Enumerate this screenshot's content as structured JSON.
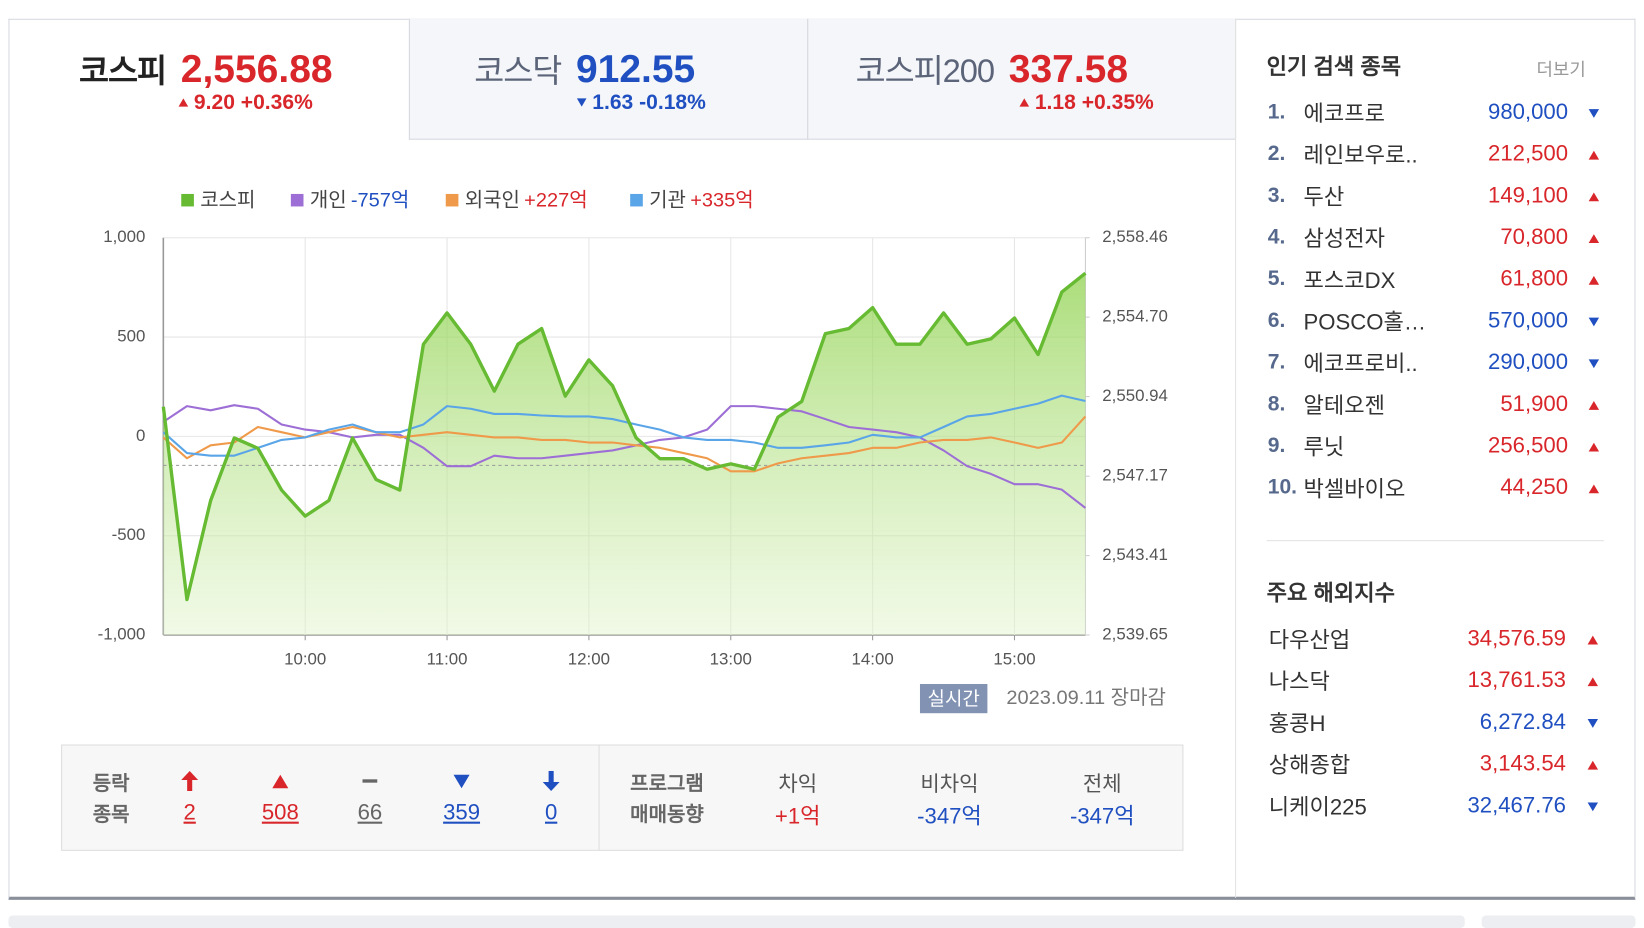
{
  "tabs": [
    {
      "name": "코스피",
      "value": "2,556.88",
      "change": "9.20 +0.36%",
      "direction": "up",
      "active": true
    },
    {
      "name": "코스닥",
      "value": "912.55",
      "change": "1.63 -0.18%",
      "direction": "down",
      "active": false
    },
    {
      "name": "코스피200",
      "value": "337.58",
      "change": "1.18 +0.35%",
      "direction": "up",
      "active": false
    }
  ],
  "chart_data": {
    "type": "line",
    "x": [
      "09:00",
      "09:10",
      "09:20",
      "09:30",
      "09:40",
      "09:50",
      "10:00",
      "10:10",
      "10:20",
      "10:30",
      "10:40",
      "10:50",
      "11:00",
      "11:10",
      "11:20",
      "11:30",
      "11:40",
      "11:50",
      "12:00",
      "12:10",
      "12:20",
      "12:30",
      "12:40",
      "12:50",
      "13:00",
      "13:10",
      "13:20",
      "13:30",
      "13:40",
      "13:50",
      "14:00",
      "14:10",
      "14:20",
      "14:30",
      "14:40",
      "14:50",
      "15:00",
      "15:10",
      "15:20",
      "15:30"
    ],
    "xlim": [
      "09:00",
      "15:30"
    ],
    "xticks": [
      "10:00",
      "11:00",
      "12:00",
      "13:00",
      "14:00",
      "15:00"
    ],
    "ylim": [
      -1000,
      1000
    ],
    "yticks": [
      {
        "value": 1000,
        "label": "1,000"
      },
      500,
      0,
      -500,
      {
        "value": -1000,
        "label": "-1,000"
      }
    ],
    "y2lim": [
      2539.65,
      2558.46
    ],
    "y2ticks": [
      {
        "value": 2558.46,
        "label": "2,558.46"
      },
      {
        "value": 2554.7,
        "label": "2,554.70"
      },
      {
        "value": 2550.94,
        "label": "2,550.94"
      },
      {
        "value": 2547.17,
        "label": "2,547.17"
      },
      {
        "value": 2543.41,
        "label": "2,543.41"
      },
      {
        "value": 2539.65,
        "label": "2,539.65"
      }
    ],
    "grid": true,
    "reference_line": {
      "value": 2547.68,
      "axis": "y2"
    },
    "series": [
      {
        "name": "코스피",
        "color": "#66bb33",
        "axis": "y2",
        "area": true,
        "values": [
          2550.46,
          2541.33,
          2546.02,
          2548.98,
          2548.49,
          2546.51,
          2545.28,
          2546.02,
          2548.98,
          2547.01,
          2546.51,
          2553.42,
          2554.9,
          2553.42,
          2551.2,
          2553.42,
          2554.16,
          2550.96,
          2552.68,
          2551.45,
          2548.98,
          2548.0,
          2548.0,
          2547.5,
          2547.75,
          2547.5,
          2549.97,
          2550.71,
          2553.92,
          2554.16,
          2555.15,
          2553.42,
          2553.42,
          2554.9,
          2553.42,
          2553.67,
          2554.66,
          2552.93,
          2555.89,
          2556.78
        ]
      },
      {
        "name": "개인",
        "color": "#9d6fd6",
        "legend_value": "-757억",
        "values": [
          73,
          152,
          131,
          157,
          139,
          60,
          34,
          21,
          -5,
          8,
          8,
          -58,
          -150,
          -150,
          -97,
          -110,
          -110,
          -97,
          -84,
          -71,
          -45,
          -18,
          -5,
          34,
          152,
          152,
          139,
          126,
          87,
          47,
          34,
          21,
          -5,
          -71,
          -150,
          -189,
          -241,
          -241,
          -268,
          -360
        ]
      },
      {
        "name": "외국인",
        "color": "#ef9a4a",
        "legend_value": "+227억",
        "values": [
          -5,
          -110,
          -45,
          -31,
          47,
          21,
          -5,
          21,
          47,
          21,
          -5,
          8,
          21,
          8,
          -5,
          -5,
          -18,
          -18,
          -31,
          -31,
          -45,
          -58,
          -84,
          -110,
          -176,
          -176,
          -136,
          -110,
          -97,
          -84,
          -58,
          -58,
          -31,
          -18,
          -18,
          -5,
          -31,
          -58,
          -31,
          100
        ]
      },
      {
        "name": "기관",
        "color": "#5aa5e8",
        "legend_value": "+335억",
        "values": [
          21,
          -84,
          -97,
          -97,
          -58,
          -18,
          -5,
          34,
          60,
          21,
          21,
          60,
          152,
          139,
          113,
          113,
          105,
          100,
          100,
          87,
          60,
          34,
          -5,
          -18,
          -18,
          -31,
          -58,
          -58,
          -45,
          -31,
          8,
          -5,
          -5,
          47,
          100,
          113,
          139,
          165,
          205,
          178
        ]
      }
    ]
  },
  "status": {
    "badge": "실시간",
    "date": "2023.09.11 장마감"
  },
  "stats": {
    "label": [
      "등락",
      "종목"
    ],
    "items": [
      {
        "value": "2",
        "direction": "limit-up"
      },
      {
        "value": "508",
        "direction": "up"
      },
      {
        "value": "66",
        "direction": "flat"
      },
      {
        "value": "359",
        "direction": "down"
      },
      {
        "value": "0",
        "direction": "limit-down"
      }
    ]
  },
  "program": {
    "label": [
      "프로그램",
      "매매동향"
    ],
    "items": [
      {
        "name": "차익",
        "value": "+1억",
        "direction": "up"
      },
      {
        "name": "비차익",
        "value": "-347억",
        "direction": "down"
      },
      {
        "name": "전체",
        "value": "-347억",
        "direction": "down"
      }
    ]
  },
  "popular": {
    "title": "인기 검색 종목",
    "more": "더보기",
    "items": [
      {
        "rank": "1.",
        "name": "에코프로",
        "price": "980,000",
        "direction": "down"
      },
      {
        "rank": "2.",
        "name": "레인보우로..",
        "price": "212,500",
        "direction": "up"
      },
      {
        "rank": "3.",
        "name": "두산",
        "price": "149,100",
        "direction": "up"
      },
      {
        "rank": "4.",
        "name": "삼성전자",
        "price": "70,800",
        "direction": "up"
      },
      {
        "rank": "5.",
        "name": "포스코DX",
        "price": "61,800",
        "direction": "up"
      },
      {
        "rank": "6.",
        "name": "POSCO홀…",
        "price": "570,000",
        "direction": "down"
      },
      {
        "rank": "7.",
        "name": "에코프로비..",
        "price": "290,000",
        "direction": "down"
      },
      {
        "rank": "8.",
        "name": "알테오젠",
        "price": "51,900",
        "direction": "up"
      },
      {
        "rank": "9.",
        "name": "루닛",
        "price": "256,500",
        "direction": "up"
      },
      {
        "rank": "10.",
        "name": "박셀바이오",
        "price": "44,250",
        "direction": "up"
      }
    ]
  },
  "overseas": {
    "title": "주요 해외지수",
    "items": [
      {
        "name": "다우산업",
        "value": "34,576.59",
        "direction": "up"
      },
      {
        "name": "나스닥",
        "value": "13,761.53",
        "direction": "up"
      },
      {
        "name": "홍콩H",
        "value": "6,272.84",
        "direction": "down"
      },
      {
        "name": "상해종합",
        "value": "3,143.54",
        "direction": "up"
      },
      {
        "name": "니케이225",
        "value": "32,467.76",
        "direction": "down"
      }
    ]
  }
}
